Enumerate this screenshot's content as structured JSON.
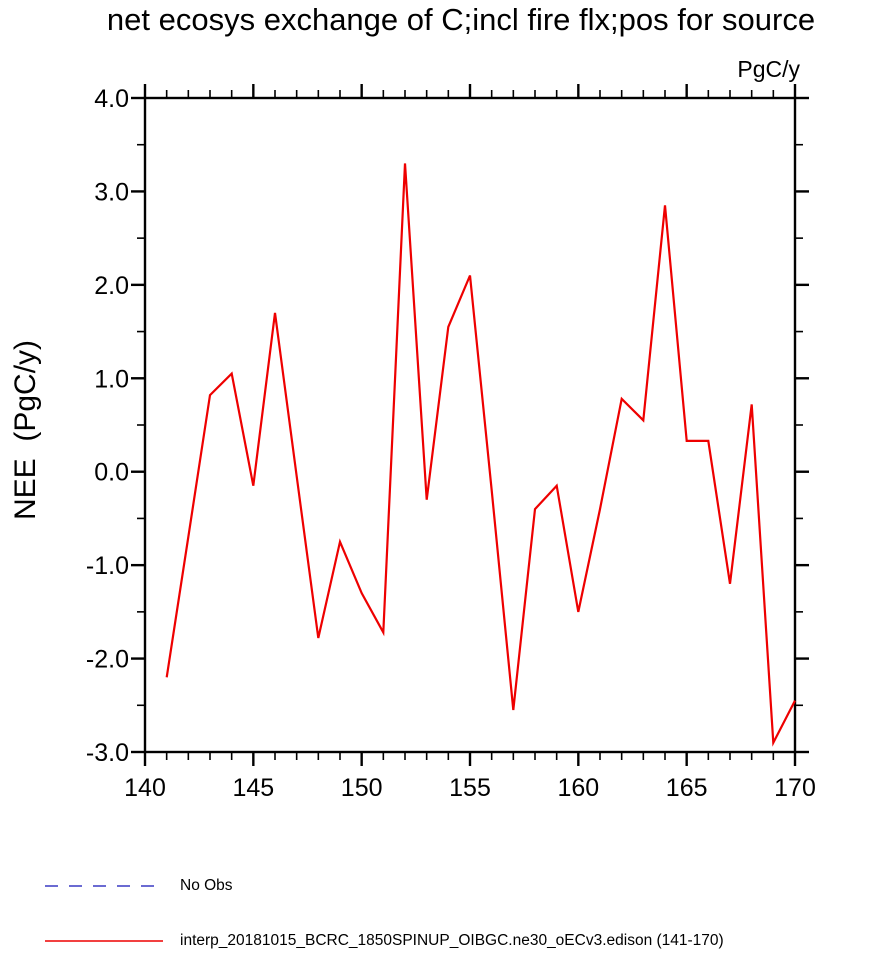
{
  "chart_data": {
    "type": "line",
    "title": "net ecosys exchange of C;incl fire flx;pos for source",
    "units_label": "PgC/y",
    "ylabel": "NEE  (PgC/y)",
    "xlabel": "",
    "xlim": [
      140,
      170
    ],
    "ylim": [
      -3.0,
      4.0
    ],
    "grid": false,
    "x_major_ticks": [
      140,
      145,
      150,
      155,
      160,
      165,
      170
    ],
    "x_tick_labels": [
      "140",
      "145",
      "150",
      "155",
      "160",
      "165",
      "170"
    ],
    "x_minor_step": 1,
    "y_major_ticks": [
      -3,
      -2,
      -1,
      0,
      1,
      2,
      3,
      4
    ],
    "y_tick_labels": [
      "-3.0",
      "-2.0",
      "-1.0",
      "0.0",
      "1.0",
      "2.0",
      "3.0",
      "4.0"
    ],
    "y_minor_step": 0.5,
    "series": [
      {
        "name": "interp_20181015_BCRC_1850SPINUP_OIBGC.ne30_oECv3.edison (141-170)",
        "color": "#ee0000",
        "style": "solid",
        "x": [
          141,
          142,
          143,
          144,
          145,
          146,
          147,
          148,
          149,
          150,
          151,
          152,
          153,
          154,
          155,
          156,
          157,
          158,
          159,
          160,
          161,
          162,
          163,
          164,
          165,
          166,
          167,
          168,
          169,
          170
        ],
        "values": [
          -2.2,
          -0.7,
          0.82,
          1.05,
          -0.15,
          1.7,
          -0.05,
          -1.78,
          -0.75,
          -1.3,
          -1.72,
          3.3,
          -0.3,
          1.55,
          2.1,
          -0.2,
          -2.55,
          -0.4,
          -0.15,
          -1.5,
          -0.4,
          0.78,
          0.55,
          2.85,
          0.33,
          0.33,
          -1.2,
          0.72,
          -2.9,
          -2.45
        ]
      }
    ],
    "legend": {
      "position": "bottom-left",
      "entries": [
        {
          "label": "No Obs",
          "color": "#3a3ac4",
          "style": "dashed"
        },
        {
          "label": "interp_20181015_BCRC_1850SPINUP_OIBGC.ne30_oECv3.edison (141-170)",
          "color": "#ee0000",
          "style": "solid"
        }
      ]
    }
  }
}
